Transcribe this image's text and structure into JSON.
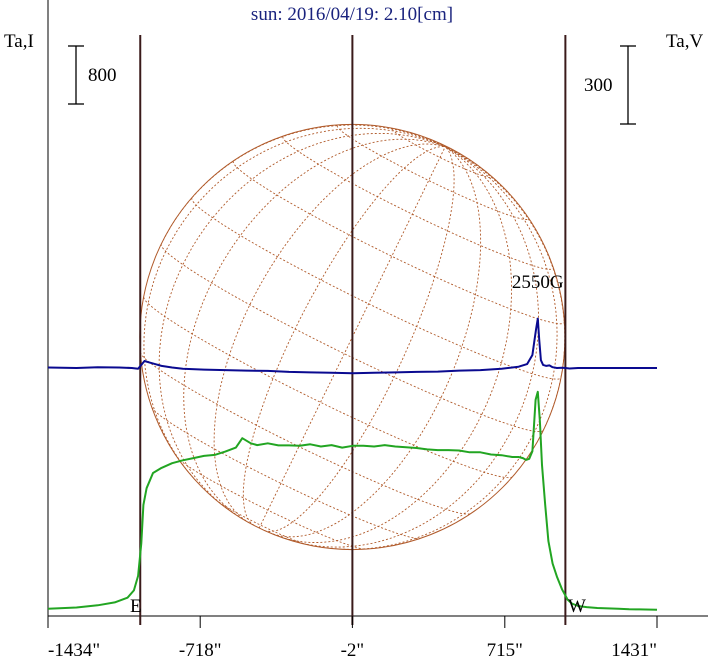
{
  "chart_data": {
    "type": "line",
    "title": "sun: 2016/04/19: 2.10[cm]",
    "left_axis_label": "Ta,I",
    "right_axis_label": "Ta,V",
    "left_scale_bar": {
      "label": "800",
      "value": 800
    },
    "right_scale_bar": {
      "label": "300",
      "value": 300
    },
    "x_tick_labels": [
      "-1434\"",
      "-718\"",
      "-2\"",
      "715\"",
      "1431\""
    ],
    "x_ticks": [
      -1434,
      -718,
      -2,
      715,
      1431
    ],
    "xlim": [
      -1434,
      1431
    ],
    "limb_labels": {
      "east": "E",
      "west": "W"
    },
    "limb_positions": [
      -1000,
      1000
    ],
    "center_position": -2,
    "annotation": {
      "text": "2550G",
      "x": 870,
      "series": "Ta,V"
    },
    "colors": {
      "title": "#1a237e",
      "intensity": "#22a522",
      "polarization": "#0a0a90",
      "solar_disk": "#b05a2a",
      "vertical_lines": "#3a1a1a"
    },
    "units": {
      "Ta,I": 800,
      "Ta,V": 300
    },
    "series": [
      {
        "name": "Ta,I",
        "color": "#22a522",
        "x": [
          -1434,
          -1300,
          -1200,
          -1120,
          -1060,
          -1030,
          -1010,
          -995,
          -985,
          -970,
          -940,
          -900,
          -850,
          -800,
          -750,
          -700,
          -650,
          -600,
          -550,
          -520,
          -480,
          -450,
          -400,
          -350,
          -300,
          -250,
          -200,
          -150,
          -100,
          -50,
          0,
          50,
          100,
          150,
          200,
          250,
          300,
          350,
          400,
          450,
          500,
          550,
          600,
          650,
          700,
          750,
          780,
          800,
          815,
          830,
          845,
          860,
          870,
          880,
          890,
          905,
          920,
          940,
          960,
          985,
          1000,
          1010,
          1030,
          1060,
          1100,
          1150,
          1200,
          1250,
          1300,
          1350,
          1431
        ],
        "y": [
          17,
          35,
          65,
          105,
          170,
          270,
          470,
          920,
          1450,
          1680,
          1890,
          1960,
          2025,
          2065,
          2095,
          2125,
          2140,
          2185,
          2240,
          2370,
          2300,
          2275,
          2300,
          2270,
          2270,
          2265,
          2285,
          2255,
          2275,
          2240,
          2265,
          2265,
          2255,
          2275,
          2255,
          2245,
          2235,
          2215,
          2205,
          2205,
          2200,
          2175,
          2175,
          2145,
          2135,
          2110,
          2110,
          2095,
          2070,
          2085,
          2190,
          2900,
          3010,
          2600,
          2000,
          1450,
          950,
          640,
          460,
          280,
          200,
          145,
          90,
          55,
          40,
          28,
          22,
          17,
          10,
          8,
          3
        ]
      },
      {
        "name": "Ta,V",
        "color": "#0a0a90",
        "x": [
          -1434,
          -1300,
          -1200,
          -1100,
          -1040,
          -1010,
          -995,
          -980,
          -960,
          -930,
          -900,
          -850,
          -800,
          -700,
          -600,
          -500,
          -400,
          -300,
          -200,
          -100,
          0,
          100,
          200,
          300,
          400,
          500,
          600,
          700,
          780,
          820,
          845,
          855,
          862,
          870,
          877,
          885,
          895,
          910,
          925,
          940,
          960,
          985,
          1000,
          1020,
          1060,
          1120,
          1200,
          1300,
          1431
        ],
        "y": [
          2,
          0,
          3,
          2,
          0,
          -3,
          12,
          27,
          22,
          15,
          8,
          2,
          -3,
          -6,
          -8,
          -10,
          -11,
          -15,
          -17,
          -18,
          -20,
          -18,
          -17,
          -15,
          -14,
          -10,
          -8,
          -3,
          5,
          15,
          50,
          110,
          150,
          190,
          110,
          30,
          12,
          8,
          10,
          3,
          0,
          1,
          0,
          -2,
          0,
          0,
          0,
          0,
          0
        ]
      }
    ]
  }
}
